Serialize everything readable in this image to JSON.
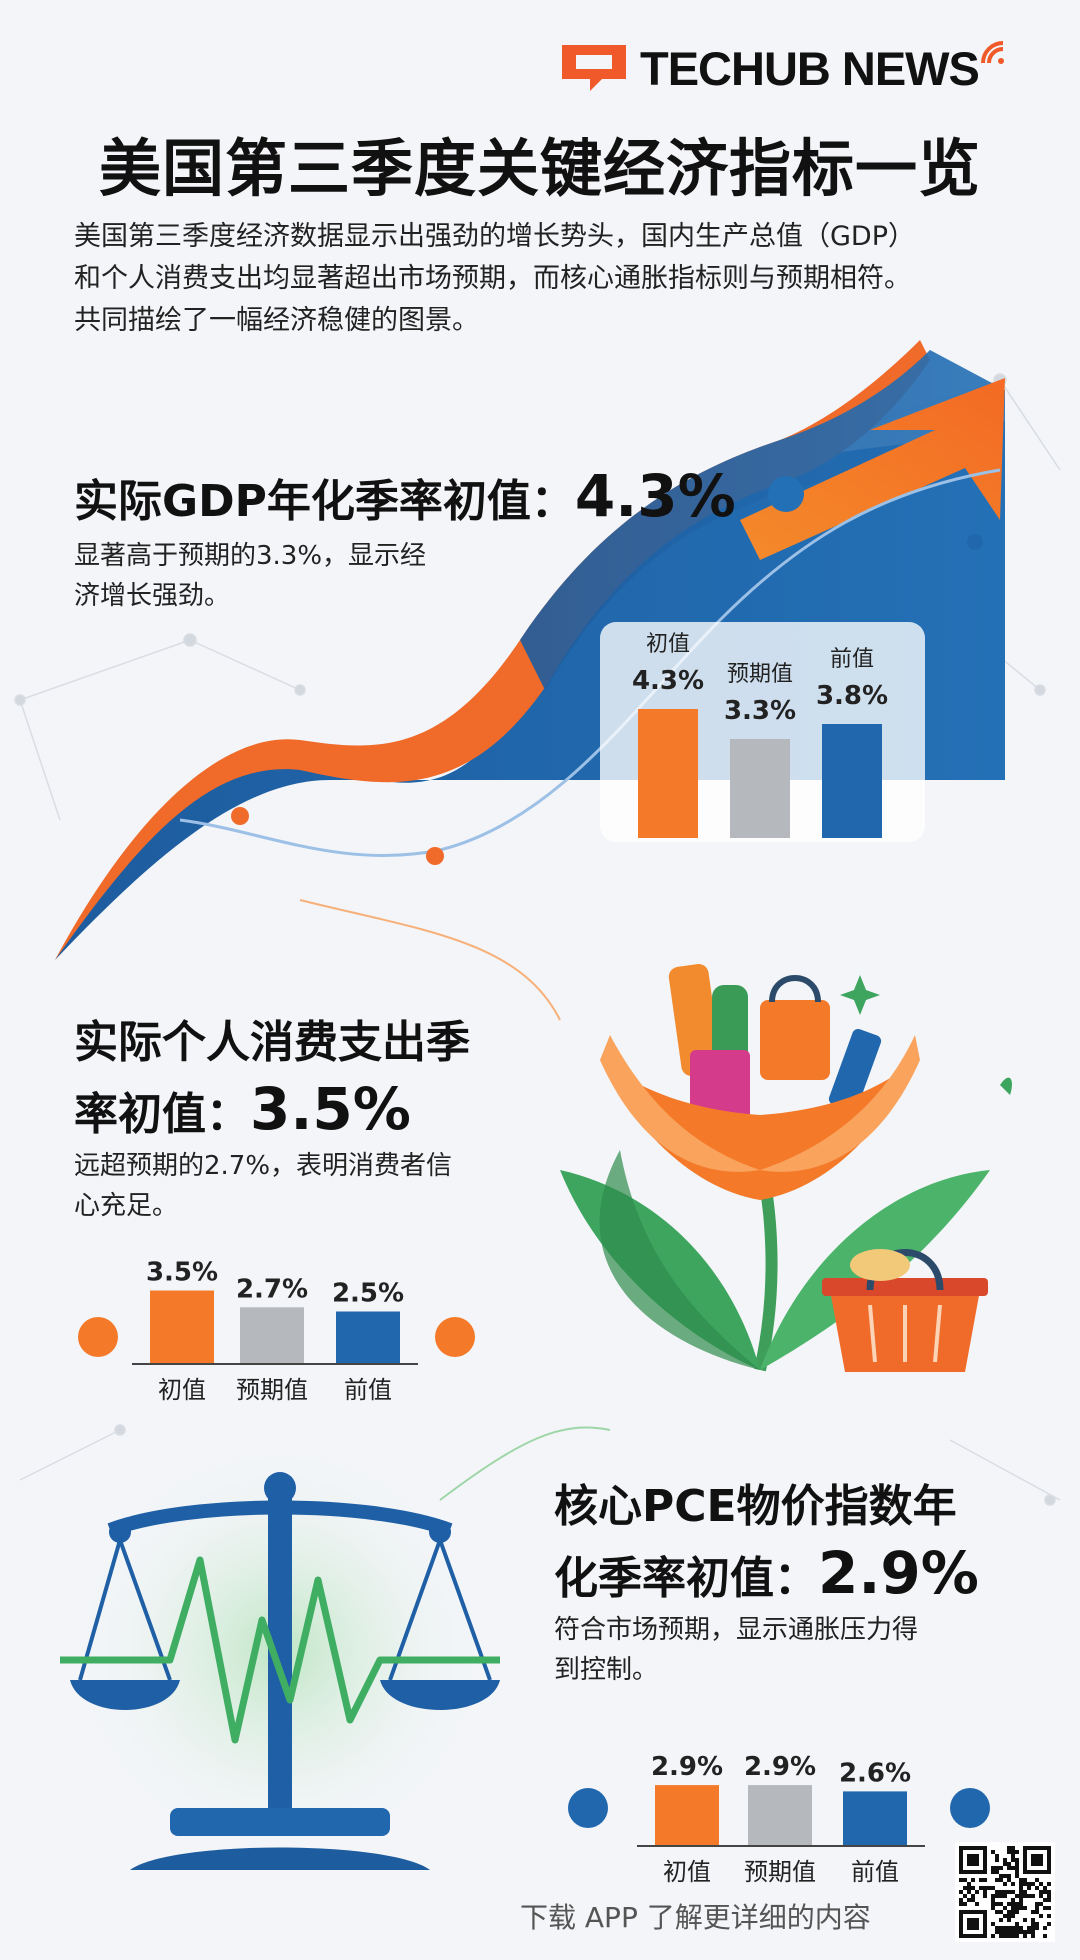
{
  "brand": {
    "name": "TECHUB NEWS",
    "accent": "#f0592a",
    "logo_icon": "techub-logo-icon",
    "signal_icon": "wifi-signal-icon"
  },
  "header": {
    "title": "美国第三季度关键经济指标一览"
  },
  "intro": {
    "lines": [
      "美国第三季度经济数据显示出强劲的增长势头，国内生产总值（GDP）",
      "和个人消费支出均显著超出市场预期，而核心通胀指标则与预期相符。",
      "共同描绘了一幅经济稳健的图景。"
    ]
  },
  "sections": {
    "gdp": {
      "heading_prefix": "实际GDP年化季率初值：",
      "heading_value": "4.3%",
      "desc_lines": [
        "显著高于预期的3.3%，显示经",
        "济增长强劲。"
      ]
    },
    "pce": {
      "heading_line1": "实际个人消费支出季",
      "heading_prefix": "率初值：",
      "heading_value": "3.5%",
      "desc_lines": [
        "远超预期的2.7%，表明消费者信",
        "心充足。"
      ]
    },
    "core": {
      "heading_line1": "核心PCE物价指数年",
      "heading_prefix": "化季率初值：",
      "heading_value": "2.9%",
      "desc_lines": [
        "符合市场预期，显示通胀压力得",
        "到控制。"
      ]
    }
  },
  "colors": {
    "initial": "#f47a2a",
    "expected": "#b5b8bd",
    "previous": "#2167ad",
    "wave_blue": "#1f5fa6",
    "wave_orange": "#f06a2a"
  },
  "chart_data": [
    {
      "type": "bar",
      "categories": [
        "初值",
        "预期值",
        "前值"
      ],
      "values": [
        4.3,
        3.3,
        3.8
      ],
      "labels": [
        "4.3%",
        "3.3%",
        "3.8%"
      ]
    },
    {
      "type": "bar",
      "categories": [
        "初值",
        "预期值",
        "前值"
      ],
      "values": [
        3.5,
        2.7,
        2.5
      ],
      "labels": [
        "3.5%",
        "2.7%",
        "2.5%"
      ]
    },
    {
      "type": "bar",
      "categories": [
        "初值",
        "预期值",
        "前值"
      ],
      "values": [
        2.9,
        2.9,
        2.6
      ],
      "labels": [
        "2.9%",
        "2.9%",
        "2.6%"
      ]
    }
  ],
  "illustrations": {
    "growth": "growth-arrow-icon",
    "plant": "shopping-plant-icon",
    "scale": "balance-scale-icon",
    "basket": "shopping-basket-icon"
  },
  "footer": {
    "text": "下载 APP 了解更详细的内容",
    "qr_icon": "qr-code-icon"
  }
}
